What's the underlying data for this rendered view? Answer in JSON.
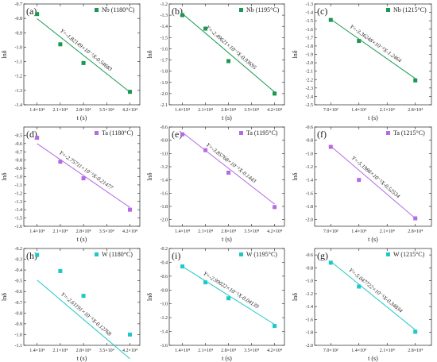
{
  "chart_data": [
    {
      "panel": "(a)",
      "type": "scatter",
      "legend": "Nb (1180°C)",
      "color": "#1a9850",
      "x": [
        14000,
        21000,
        28000,
        42000
      ],
      "y": [
        -0.77,
        -0.98,
        -1.11,
        -1.31
      ],
      "fit_equation": "Y=-1.82149×10⁻⁵X-0.54683",
      "fit": {
        "slope": -1.82149e-05,
        "intercept": -0.54683
      },
      "xlim": [
        10000,
        45000
      ],
      "ylim": [
        -1.4,
        -0.7
      ],
      "xticks": [
        14000,
        21000,
        28000,
        35000,
        42000
      ],
      "xtick_labels": [
        "1.4×10⁴",
        "2.1×10⁴",
        "2.8×10⁴",
        "3.5×10⁴",
        "4.2×10⁴"
      ],
      "yticks": [
        -0.7,
        -0.8,
        -0.9,
        -1.0,
        -1.1,
        -1.2,
        -1.3,
        -1.4
      ],
      "ytick_labels": [
        "-0.7",
        "-0.8",
        "-0.9",
        "-1.0",
        "-1.1",
        "-1.2",
        "-1.3",
        "-1.4"
      ],
      "xlabel": "t (s)",
      "ylabel": "lnδ"
    },
    {
      "panel": "(b)",
      "type": "scatter",
      "legend": "Nb (1195°C)",
      "color": "#1a9850",
      "x": [
        14000,
        21000,
        28000,
        42000
      ],
      "y": [
        -1.3,
        -1.42,
        -1.71,
        -2.0
      ],
      "fit_equation": "Y=-2.49621×10⁻⁵X-0.93695",
      "fit": {
        "slope": -2.49621e-05,
        "intercept": -0.93695
      },
      "xlim": [
        10000,
        45000
      ],
      "ylim": [
        -2.1,
        -1.2
      ],
      "xticks": [
        14000,
        21000,
        28000,
        35000,
        42000
      ],
      "xtick_labels": [
        "1.4×10⁴",
        "2.1×10⁴",
        "2.8×10⁴",
        "3.5×10⁴",
        "4.2×10⁴"
      ],
      "yticks": [
        -1.2,
        -1.3,
        -1.4,
        -1.5,
        -1.6,
        -1.7,
        -1.8,
        -1.9,
        -2.0,
        -2.1
      ],
      "ytick_labels": [
        "-1.2",
        "-1.3",
        "-1.4",
        "-1.5",
        "-1.6",
        "-1.7",
        "-1.8",
        "-1.9",
        "-2.0",
        "-2.1"
      ],
      "xlabel": "t (s)",
      "ylabel": "lnδ"
    },
    {
      "panel": "(c)",
      "type": "scatter",
      "legend": "Nb (1215°C)",
      "color": "#1a9850",
      "x": [
        7000,
        14000,
        28000
      ],
      "y": [
        -1.49,
        -1.74,
        -2.21
      ],
      "fit_equation": "Y=-3.36248×10⁻⁵X-1.2464",
      "fit": {
        "slope": -3.36248e-05,
        "intercept": -1.2464
      },
      "xlim": [
        3000,
        32000
      ],
      "ylim": [
        -2.5,
        -1.3
      ],
      "xticks": [
        7000,
        14000,
        21000,
        28000
      ],
      "xtick_labels": [
        "7.0×10³",
        "1.4×10⁴",
        "2.1×10⁴",
        "2.8×10⁴"
      ],
      "yticks": [
        -1.3,
        -1.4,
        -1.5,
        -1.6,
        -1.7,
        -1.8,
        -1.9,
        -2.0,
        -2.1,
        -2.2,
        -2.3,
        -2.4,
        -2.5
      ],
      "ytick_labels": [
        "-1.3",
        "-1.4",
        "-1.5",
        "-1.6",
        "-1.7",
        "-1.8",
        "-1.9",
        "-2.0",
        "-2.1",
        "-2.2",
        "-2.3",
        "-2.4",
        "-2.5"
      ],
      "xlabel": "t (s)",
      "ylabel": "lnδ"
    },
    {
      "panel": "(d)",
      "type": "scatter",
      "legend": "Ta (1180°C)",
      "color": "#b36ae2",
      "x": [
        14000,
        21000,
        28000,
        42000
      ],
      "y": [
        -0.53,
        -0.82,
        -1.02,
        -1.4
      ],
      "fit_equation": "Y=-2.75711×10⁻⁵X-0.21477",
      "fit": {
        "slope": -2.75711e-05,
        "intercept": -0.21477
      },
      "xlim": [
        10000,
        45000
      ],
      "ylim": [
        -1.6,
        -0.4
      ],
      "xticks": [
        14000,
        21000,
        28000,
        35000,
        42000
      ],
      "xtick_labels": [
        "1.4×10⁴",
        "2.1×10⁴",
        "2.8×10⁴",
        "3.5×10⁴",
        "4.2×10⁴"
      ],
      "yticks": [
        -0.5,
        -0.6,
        -0.7,
        -0.8,
        -0.9,
        -1.0,
        -1.1,
        -1.2,
        -1.3,
        -1.4,
        -1.5,
        -1.6
      ],
      "ytick_labels": [
        "-0.5",
        "-0.6",
        "-0.7",
        "-0.8",
        "-0.9",
        "-1.0",
        "-1.1",
        "-1.2",
        "-1.3",
        "-1.4",
        "-1.5",
        "-1.6"
      ],
      "xlabel": "t (s)",
      "ylabel": "lnδ"
    },
    {
      "panel": "(e)",
      "type": "scatter",
      "legend": "Ta (1195°C)",
      "color": "#b36ae2",
      "x": [
        14000,
        21000,
        28000,
        42000
      ],
      "y": [
        -0.71,
        -0.95,
        -1.29,
        -1.81
      ],
      "fit_equation": "Y=-3.85768×10⁻⁵X-0.1443",
      "fit": {
        "slope": -3.85768e-05,
        "intercept": -0.1443
      },
      "xlim": [
        10000,
        45000
      ],
      "ylim": [
        -2.1,
        -0.6
      ],
      "xticks": [
        14000,
        21000,
        28000,
        35000,
        42000
      ],
      "xtick_labels": [
        "1.4×10⁴",
        "2.1×10⁴",
        "2.8×10⁴",
        "3.5×10⁴",
        "4.2×10⁴"
      ],
      "yticks": [
        -0.6,
        -0.8,
        -1.0,
        -1.2,
        -1.4,
        -1.6,
        -1.8,
        -2.0
      ],
      "ytick_labels": [
        "-0.6",
        "-0.8",
        "-1.0",
        "-1.2",
        "-1.4",
        "-1.6",
        "-1.8",
        "-2.0"
      ],
      "xlabel": "t (s)",
      "ylabel": "lnδ"
    },
    {
      "panel": "(f)",
      "type": "scatter",
      "legend": "Ta (1215°C)",
      "color": "#b36ae2",
      "x": [
        7000,
        14000,
        28000
      ],
      "y": [
        -0.9,
        -1.4,
        -1.98
      ],
      "fit_equation": "Y=-5.1988×10⁻⁵X-0.52534",
      "fit": {
        "slope": -5.1988e-05,
        "intercept": -0.52534
      },
      "xlim": [
        3000,
        32000
      ],
      "ylim": [
        -2.1,
        -0.6
      ],
      "xticks": [
        7000,
        14000,
        21000,
        28000
      ],
      "xtick_labels": [
        "7.0×10³",
        "1.4×10⁴",
        "2.1×10⁴",
        "2.8×10⁴"
      ],
      "yticks": [
        -0.6,
        -0.8,
        -1.0,
        -1.2,
        -1.4,
        -1.6,
        -1.8,
        -2.0
      ],
      "ytick_labels": [
        "-0.6",
        "-0.8",
        "-1.0",
        "-1.2",
        "-1.4",
        "-1.6",
        "-1.8",
        "-2.0"
      ],
      "xlabel": "t (s)",
      "ylabel": "lnδ"
    },
    {
      "panel": "(h)",
      "type": "scatter",
      "legend": "W (1180°C)",
      "color": "#1ec8c8",
      "x": [
        14000,
        21000,
        28000,
        42000
      ],
      "y": [
        -0.26,
        -0.41,
        -0.64,
        -1.0
      ],
      "fit_equation": "Y=-2.61191×10⁻⁵X-0.12768",
      "fit": {
        "slope": -2.61191e-05,
        "intercept": -0.12768
      },
      "xlim": [
        10000,
        45000
      ],
      "ylim": [
        -1.1,
        -0.2
      ],
      "xticks": [
        14000,
        21000,
        28000,
        35000,
        42000
      ],
      "xtick_labels": [
        "1.4×10⁴",
        "2.1×10⁴",
        "2.8×10⁴",
        "3.5×10⁴",
        "4.2×10⁴"
      ],
      "yticks": [
        -0.2,
        -0.3,
        -0.4,
        -0.5,
        -0.6,
        -0.7,
        -0.8,
        -0.9,
        -1.0,
        -1.1
      ],
      "ytick_labels": [
        "-0.2",
        "-0.3",
        "-0.4",
        "-0.5",
        "-0.6",
        "-0.7",
        "-0.8",
        "-0.9",
        "-1.0",
        "-1.1"
      ],
      "xlabel": "t (s)",
      "ylabel": "lnδ"
    },
    {
      "panel": "(i)",
      "type": "scatter",
      "legend": "W (1195°C)",
      "color": "#1ec8c8",
      "x": [
        14000,
        21000,
        28000,
        42000
      ],
      "y": [
        -0.46,
        -0.69,
        -0.92,
        -1.32
      ],
      "fit_equation": "Y=-2.99022×10⁻⁵X-0.04139",
      "fit": {
        "slope": -2.99022e-05,
        "intercept": -0.04139
      },
      "xlim": [
        10000,
        45000
      ],
      "ylim": [
        -1.6,
        -0.2
      ],
      "xticks": [
        14000,
        21000,
        28000,
        35000,
        42000
      ],
      "xtick_labels": [
        "1.4×10⁴",
        "2.1×10⁴",
        "2.8×10⁴",
        "3.5×10⁴",
        "4.2×10⁴"
      ],
      "yticks": [
        -0.2,
        -0.4,
        -0.6,
        -0.8,
        -1.0,
        -1.2,
        -1.4,
        -1.6
      ],
      "ytick_labels": [
        "-0.2",
        "-0.4",
        "-0.6",
        "-0.8",
        "-1.0",
        "-1.2",
        "-1.4",
        "-1.6"
      ],
      "xlabel": "t (s)",
      "ylabel": "lnδ"
    },
    {
      "panel": "(g)",
      "type": "scatter",
      "legend": "W (1215°C)",
      "color": "#1ec8c8",
      "x": [
        7000,
        14000,
        28000
      ],
      "y": [
        -0.72,
        -1.09,
        -1.79
      ],
      "fit_equation": "Y=-5.047722×10⁻⁵X-0.34834",
      "fit": {
        "slope": -5.047722e-05,
        "intercept": -0.34834
      },
      "xlim": [
        3000,
        32000
      ],
      "ylim": [
        -2.0,
        -0.5
      ],
      "xticks": [
        7000,
        14000,
        21000,
        28000
      ],
      "xtick_labels": [
        "7.0×10³",
        "1.4×10⁴",
        "2.1×10⁴",
        "2.8×10⁴"
      ],
      "yticks": [
        -0.6,
        -0.8,
        -1.0,
        -1.2,
        -1.4,
        -1.6,
        -1.8,
        -2.0
      ],
      "ytick_labels": [
        "-0.6",
        "-0.8",
        "-1.0",
        "-1.2",
        "-1.4",
        "-1.6",
        "-1.8",
        "-2.0"
      ],
      "xlabel": "t (s)",
      "ylabel": "lnδ"
    }
  ]
}
